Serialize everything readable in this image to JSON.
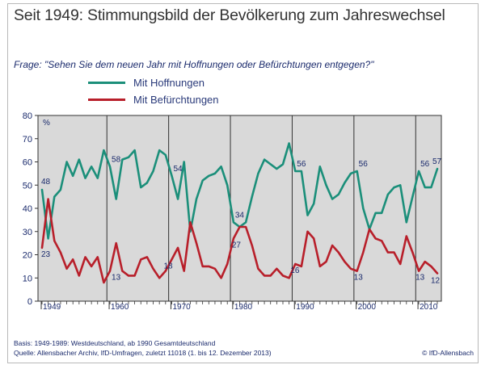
{
  "title": "Seit 1949: Stimmungsbild der Bevölkerung zum Jahreswechsel",
  "question": "Frage: \"Sehen Sie dem neuen Jahr mit Hoffnungen oder Befürchtungen entgegen?\"",
  "footnotes": {
    "basis": "Basis: 1949-1989: Westdeutschland, ab 1990 Gesamtdeutschland",
    "source": "Quelle: Allensbacher Archiv, IfD-Umfragen, zuletzt 11018 (1. bis 12. Dezember 2013)",
    "brand": "© IfD-Allensbach"
  },
  "colors": {
    "hope": "#1b8f7a",
    "fear": "#b81f2a",
    "plot_bg": "#d9d9d9",
    "axis_text": "#1a2a6c"
  },
  "chart_data": {
    "type": "line",
    "ylabel": "%",
    "ylim": [
      0,
      80
    ],
    "yticks": [
      0,
      10,
      20,
      30,
      40,
      50,
      60,
      70,
      80
    ],
    "xlim": [
      1949,
      2013
    ],
    "xticks": [
      {
        "value": 1949,
        "label": "1949"
      },
      {
        "value": 1960,
        "label": "1960"
      },
      {
        "value": 1970,
        "label": "1970"
      },
      {
        "value": 1980,
        "label": "1980"
      },
      {
        "value": 1990,
        "label": "1990"
      },
      {
        "value": 2000,
        "label": "2000"
      },
      {
        "value": 2010,
        "label": "2010"
      }
    ],
    "decade_dividers": [
      1959.5,
      1969.5,
      1979.5,
      1989.5,
      1999.5,
      2009.5
    ],
    "grid": false,
    "legend": "top-left",
    "x": [
      1949,
      1950,
      1951,
      1952,
      1953,
      1954,
      1955,
      1956,
      1957,
      1958,
      1959,
      1960,
      1961,
      1962,
      1963,
      1964,
      1965,
      1966,
      1967,
      1968,
      1969,
      1970,
      1971,
      1972,
      1973,
      1974,
      1975,
      1976,
      1977,
      1978,
      1979,
      1980,
      1981,
      1982,
      1983,
      1984,
      1985,
      1986,
      1987,
      1988,
      1989,
      1990,
      1991,
      1992,
      1993,
      1994,
      1995,
      1996,
      1997,
      1998,
      1999,
      2000,
      2001,
      2002,
      2003,
      2004,
      2005,
      2006,
      2007,
      2008,
      2009,
      2010,
      2011,
      2012,
      2013
    ],
    "series": [
      {
        "name": "Mit Hoffnungen",
        "color": "#1b8f7a",
        "values": [
          48,
          27,
          45,
          48,
          60,
          54,
          61,
          53,
          58,
          53,
          65,
          58,
          44,
          61,
          62,
          65,
          49,
          51,
          56,
          65,
          63,
          54,
          44,
          60,
          30,
          44,
          52,
          54,
          55,
          58,
          50,
          34,
          32,
          34,
          45,
          55,
          61,
          59,
          57,
          59,
          68,
          56,
          56,
          37,
          42,
          58,
          50,
          44,
          46,
          51,
          55,
          56,
          40,
          31,
          38,
          38,
          46,
          49,
          50,
          34,
          45,
          56,
          49,
          49,
          57
        ],
        "labels": [
          {
            "year": 1949,
            "value": 48,
            "text": "48"
          },
          {
            "year": 1960,
            "value": 58,
            "text": "58"
          },
          {
            "year": 1970,
            "value": 54,
            "text": "54"
          },
          {
            "year": 1980,
            "value": 34,
            "text": "34"
          },
          {
            "year": 1990,
            "value": 56,
            "text": "56"
          },
          {
            "year": 2000,
            "value": 56,
            "text": "56"
          },
          {
            "year": 2010,
            "value": 56,
            "text": "56"
          },
          {
            "year": 2013,
            "value": 57,
            "text": "57"
          }
        ]
      },
      {
        "name": "Mit Befürchtungen",
        "color": "#b81f2a",
        "values": [
          23,
          44,
          26,
          21,
          14,
          18,
          11,
          19,
          15,
          19,
          8,
          13,
          25,
          13,
          11,
          11,
          18,
          19,
          14,
          10,
          13,
          18,
          23,
          13,
          34,
          25,
          15,
          15,
          14,
          10,
          16,
          27,
          32,
          32,
          24,
          14,
          11,
          11,
          14,
          11,
          10,
          16,
          15,
          30,
          27,
          15,
          17,
          24,
          21,
          17,
          14,
          13,
          21,
          31,
          27,
          26,
          21,
          21,
          16,
          28,
          21,
          13,
          17,
          15,
          12
        ],
        "labels": [
          {
            "year": 1949,
            "value": 23,
            "text": "23"
          },
          {
            "year": 1960,
            "value": 13,
            "text": "13"
          },
          {
            "year": 1970,
            "value": 18,
            "text": "18"
          },
          {
            "year": 1980,
            "value": 27,
            "text": "27"
          },
          {
            "year": 1990,
            "value": 16,
            "text": "16"
          },
          {
            "year": 2000,
            "value": 13,
            "text": "13"
          },
          {
            "year": 2010,
            "value": 13,
            "text": "13"
          },
          {
            "year": 2013,
            "value": 12,
            "text": "12"
          }
        ]
      }
    ]
  }
}
